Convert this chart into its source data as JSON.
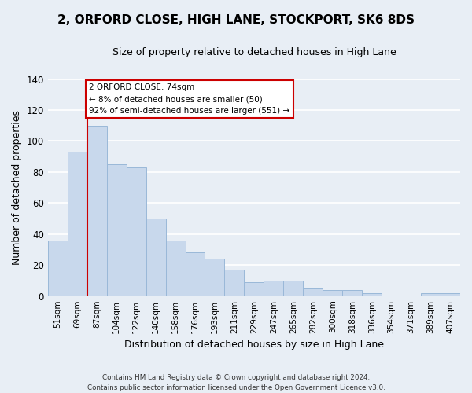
{
  "title": "2, ORFORD CLOSE, HIGH LANE, STOCKPORT, SK6 8DS",
  "subtitle": "Size of property relative to detached houses in High Lane",
  "xlabel": "Distribution of detached houses by size in High Lane",
  "ylabel": "Number of detached properties",
  "categories": [
    "51sqm",
    "69sqm",
    "87sqm",
    "104sqm",
    "122sqm",
    "140sqm",
    "158sqm",
    "176sqm",
    "193sqm",
    "211sqm",
    "229sqm",
    "247sqm",
    "265sqm",
    "282sqm",
    "300sqm",
    "318sqm",
    "336sqm",
    "354sqm",
    "371sqm",
    "389sqm",
    "407sqm"
  ],
  "values": [
    36,
    93,
    110,
    85,
    83,
    50,
    36,
    28,
    24,
    17,
    9,
    10,
    10,
    5,
    4,
    4,
    2,
    0,
    0,
    2,
    2
  ],
  "bar_color": "#c8d8ec",
  "bar_edge_color": "#9ab8d8",
  "vline_color": "#cc0000",
  "annotation_text": "2 ORFORD CLOSE: 74sqm\n← 8% of detached houses are smaller (50)\n92% of semi-detached houses are larger (551) →",
  "annotation_box_color": "#ffffff",
  "annotation_box_edge_color": "#cc0000",
  "ylim": [
    0,
    140
  ],
  "yticks": [
    0,
    20,
    40,
    60,
    80,
    100,
    120,
    140
  ],
  "footer": "Contains HM Land Registry data © Crown copyright and database right 2024.\nContains public sector information licensed under the Open Government Licence v3.0.",
  "background_color": "#e8eef5",
  "grid_color": "#ffffff",
  "title_fontsize": 11,
  "subtitle_fontsize": 9
}
